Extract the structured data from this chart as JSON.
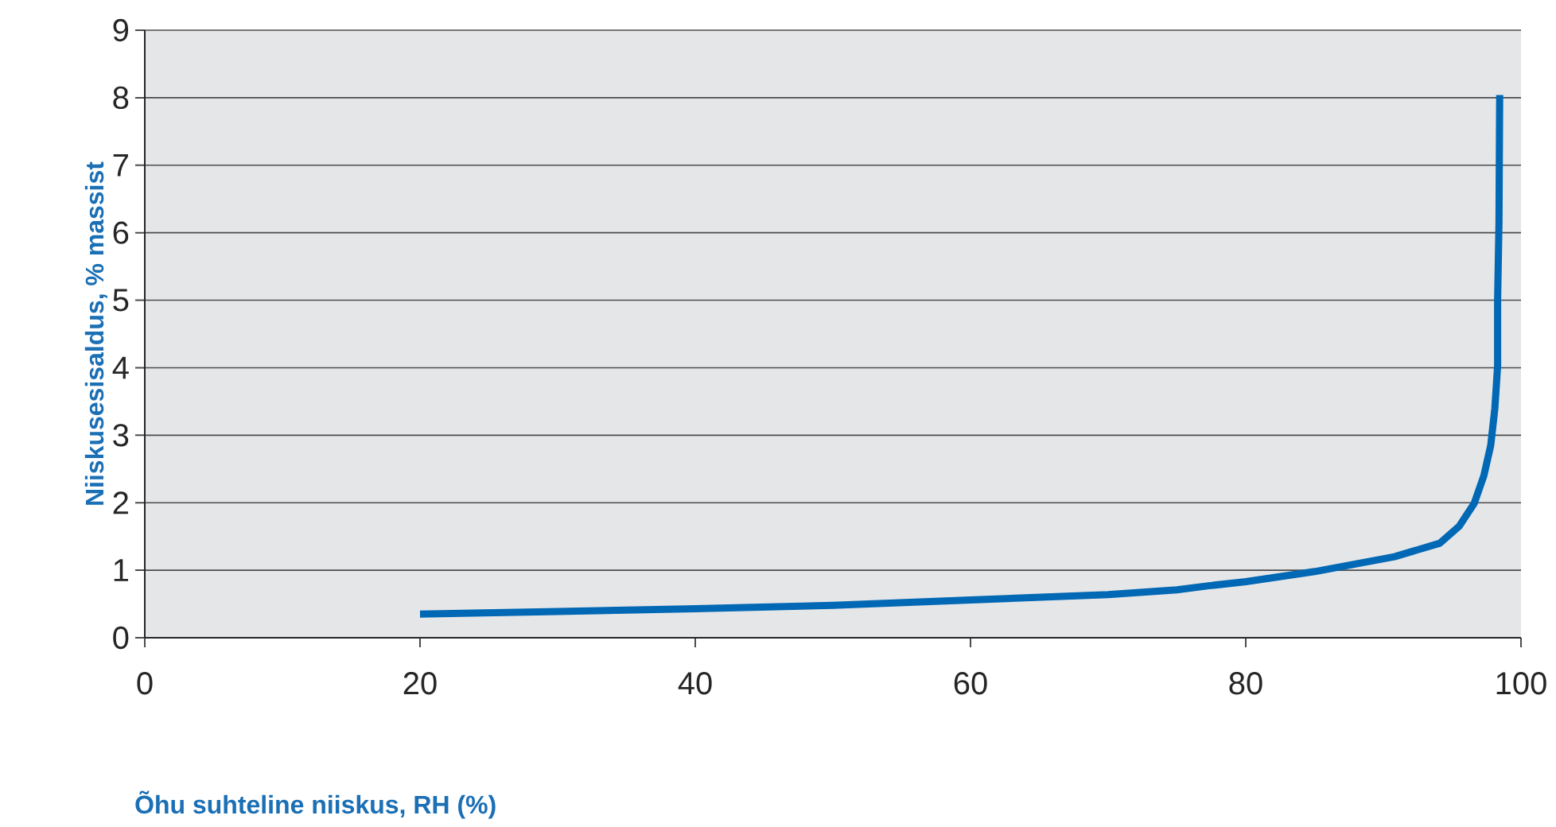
{
  "chart_data": {
    "type": "line",
    "xlabel": "Õhu suhteline niiskus, RH (%)",
    "ylabel": "Niiskusesisaldus, % massist",
    "xlim": [
      0,
      100
    ],
    "ylim": [
      0,
      9
    ],
    "xticks": [
      0,
      20,
      40,
      60,
      80,
      100
    ],
    "yticks": [
      0,
      1,
      2,
      3,
      4,
      5,
      6,
      7,
      8,
      9
    ],
    "grid": "y",
    "marker": "none",
    "line_style": "solid",
    "series": [
      {
        "color": "#0068b4",
        "x": [
          20,
          30,
          40,
          50,
          60,
          70,
          75,
          77.3,
          80,
          85,
          90.8,
          94.1,
          95.5,
          96.6,
          97.3,
          97.8,
          98.1,
          98.3,
          98.3,
          98.4,
          98.45
        ],
        "values": [
          0.35,
          0.39,
          0.43,
          0.48,
          0.56,
          0.64,
          0.71,
          0.77,
          0.83,
          0.98,
          1.2,
          1.4,
          1.65,
          1.99,
          2.4,
          2.85,
          3.4,
          4.03,
          5,
          6.15,
          8.04
        ]
      }
    ]
  }
}
